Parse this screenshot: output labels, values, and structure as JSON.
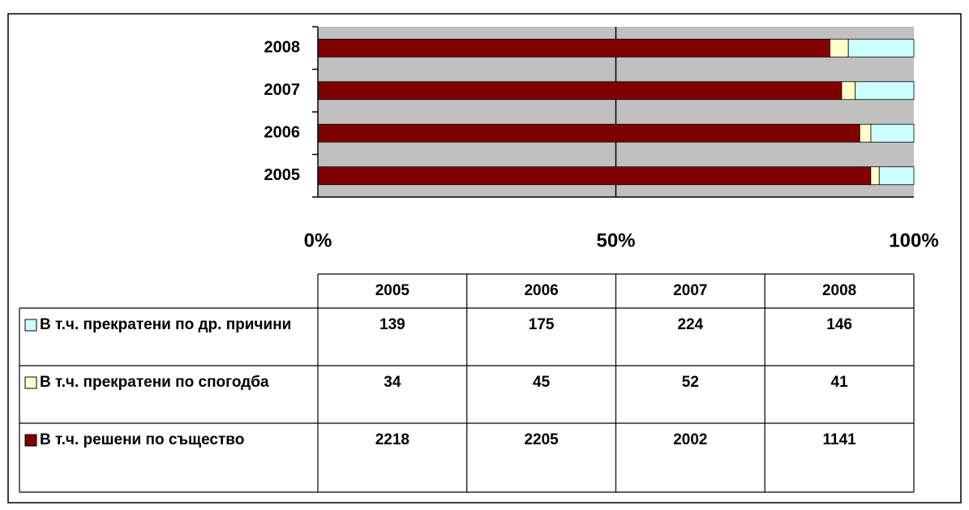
{
  "chart_data": {
    "type": "bar",
    "orientation": "horizontal",
    "stacked": "percent",
    "categories": [
      "2005",
      "2006",
      "2007",
      "2008"
    ],
    "series": [
      {
        "name": "В т.ч. решени по същество",
        "color": "#800000",
        "values": [
          2218,
          2205,
          2002,
          1141
        ]
      },
      {
        "name": "В т.ч. прекратени по спогодба",
        "color": "#ffffcc",
        "values": [
          34,
          45,
          52,
          41
        ]
      },
      {
        "name": "В т.ч. прекратени по др. причини",
        "color": "#ccffff",
        "values": [
          139,
          175,
          224,
          146
        ]
      }
    ],
    "xlim": [
      0,
      100
    ],
    "xticks": [
      {
        "value": 0,
        "label": "0%"
      },
      {
        "value": 50,
        "label": "50%"
      },
      {
        "value": 100,
        "label": "100%"
      }
    ],
    "plot_background": "#c0c0c0",
    "grid": true,
    "data_table": true
  }
}
